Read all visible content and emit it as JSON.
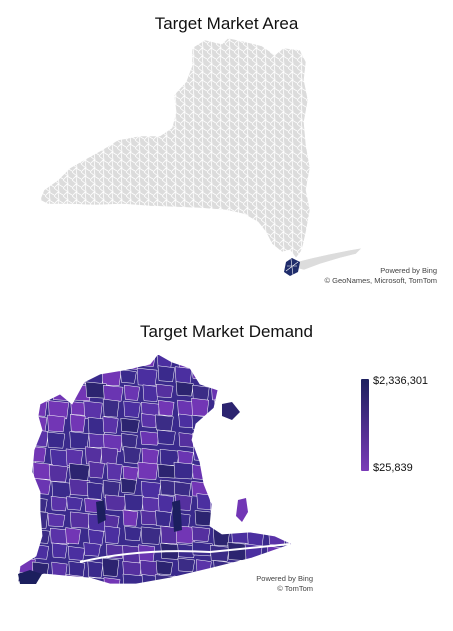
{
  "area_map": {
    "title": "Target Market Area",
    "credit_line1": "Powered by Bing",
    "credit_line2": "© GeoNames, Microsoft, TomTom",
    "base_fill": "#dcdcdc",
    "border_color": "#ffffff",
    "highlight_fill": "#1f2c6b"
  },
  "demand_map": {
    "title": "Target Market Demand",
    "credit_line1": "Powered by Bing",
    "credit_line2": "© TomTom",
    "legend": {
      "max_label": "$2,336,301",
      "min_label": "$25,839",
      "color_high": "#1c1f5e",
      "color_low": "#7a3bb8"
    },
    "palette": [
      "#3a2a8c",
      "#4b2fa0",
      "#5a33a8",
      "#6a35b2",
      "#3b2c86",
      "#2c2470",
      "#7236b5",
      "#55309f"
    ]
  }
}
